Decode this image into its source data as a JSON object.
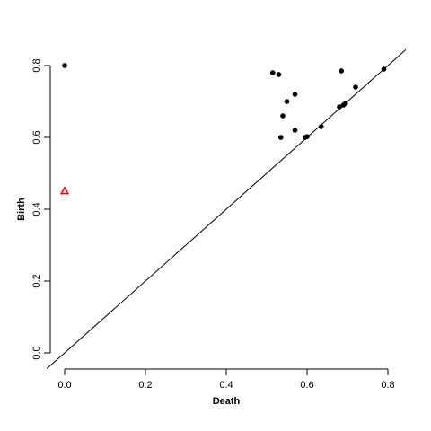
{
  "chart_data": {
    "type": "scatter",
    "xlabel": "Death",
    "ylabel": "Birth",
    "xlim": [
      0.0,
      0.8
    ],
    "ylim": [
      0.0,
      0.8
    ],
    "x_ticks": [
      0.0,
      0.2,
      0.4,
      0.6,
      0.8
    ],
    "y_ticks": [
      0.0,
      0.2,
      0.4,
      0.6,
      0.8
    ],
    "x_tick_labels": [
      "0.0",
      "0.2",
      "0.4",
      "0.6",
      "0.8"
    ],
    "y_tick_labels": [
      "0.0",
      "0.2",
      "0.4",
      "0.6",
      "0.8"
    ],
    "diagonal_line": true,
    "grid": false,
    "series": [
      {
        "marker": "filled-circle",
        "color": "#000000",
        "points": [
          {
            "x": 0.0,
            "y": 0.8
          },
          {
            "x": 0.515,
            "y": 0.78
          },
          {
            "x": 0.53,
            "y": 0.775
          },
          {
            "x": 0.685,
            "y": 0.785
          },
          {
            "x": 0.79,
            "y": 0.79
          },
          {
            "x": 0.72,
            "y": 0.74
          },
          {
            "x": 0.57,
            "y": 0.72
          },
          {
            "x": 0.55,
            "y": 0.7
          },
          {
            "x": 0.695,
            "y": 0.695
          },
          {
            "x": 0.69,
            "y": 0.69
          },
          {
            "x": 0.68,
            "y": 0.685
          },
          {
            "x": 0.54,
            "y": 0.66
          },
          {
            "x": 0.635,
            "y": 0.63
          },
          {
            "x": 0.57,
            "y": 0.62
          },
          {
            "x": 0.535,
            "y": 0.6
          },
          {
            "x": 0.595,
            "y": 0.6
          },
          {
            "x": 0.6,
            "y": 0.602
          }
        ]
      },
      {
        "marker": "open-triangle",
        "color": "#ff0000",
        "points": [
          {
            "x": 0.0,
            "y": 0.45
          }
        ]
      }
    ]
  }
}
